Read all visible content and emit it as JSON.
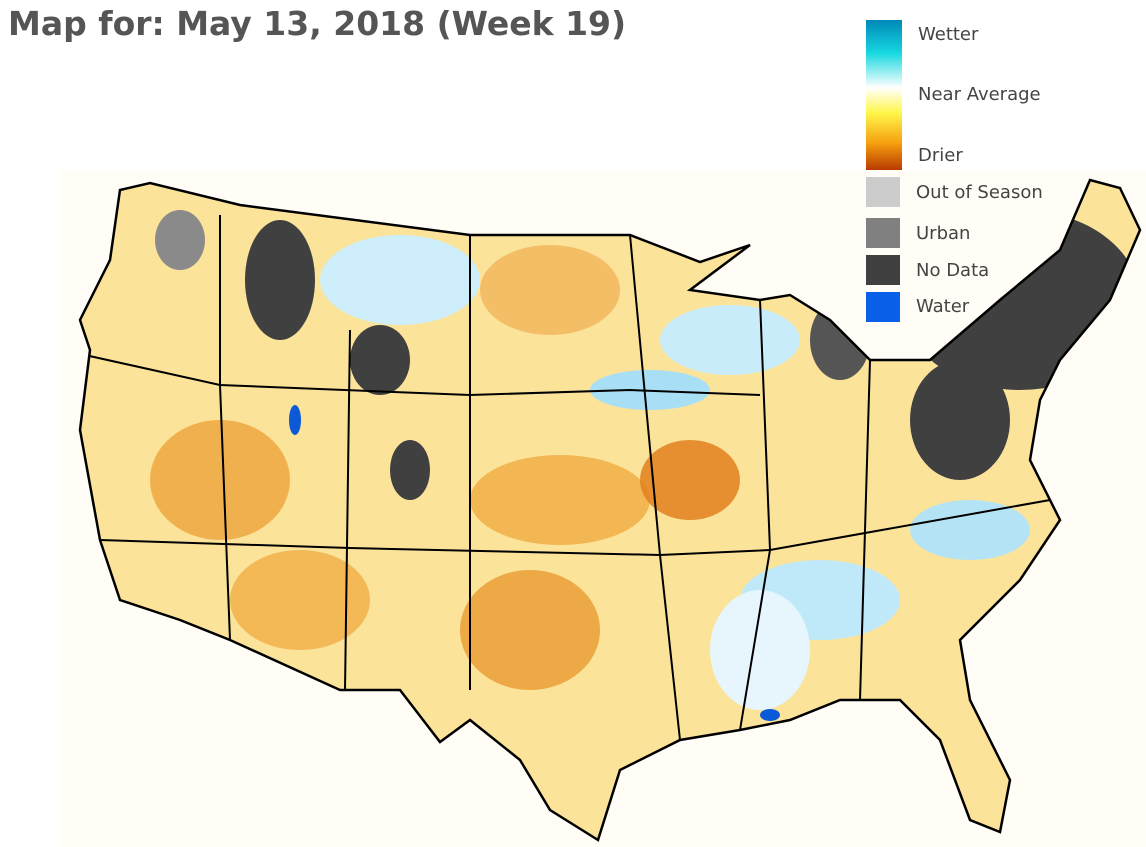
{
  "header": {
    "title": "Map for: May 13, 2018 (Week 19)"
  },
  "legend": {
    "scale": [
      "Wetter",
      "Near Average",
      "Drier"
    ],
    "items": [
      "Out of Season",
      "Urban",
      "No Data",
      "Water"
    ]
  }
}
